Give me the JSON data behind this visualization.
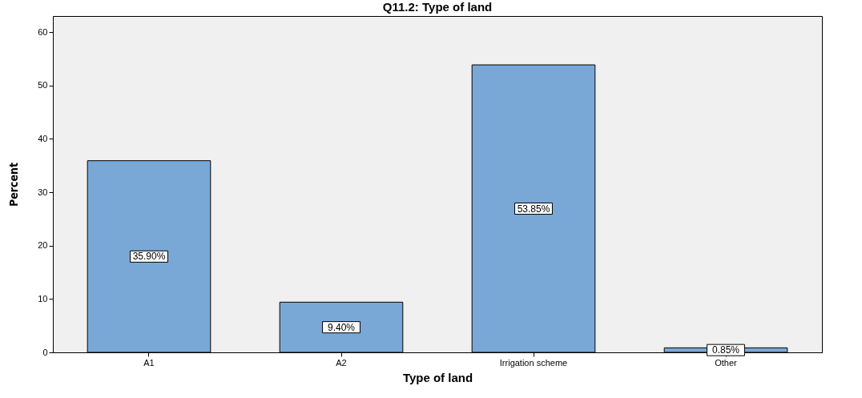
{
  "chart_data": {
    "type": "bar",
    "title": "Q11.2: Type of land",
    "xlabel": "Type of land",
    "ylabel": "Percent",
    "categories": [
      "A1",
      "A2",
      "Irrigation scheme",
      "Other"
    ],
    "values": [
      35.9,
      9.4,
      53.85,
      0.85
    ],
    "value_labels": [
      "35.90%",
      "9.40%",
      "53.85%",
      "0.85%"
    ],
    "color": "#79a8d6",
    "ylim": [
      0,
      63
    ],
    "yticks": [
      0,
      10,
      20,
      30,
      40,
      50,
      60
    ]
  }
}
